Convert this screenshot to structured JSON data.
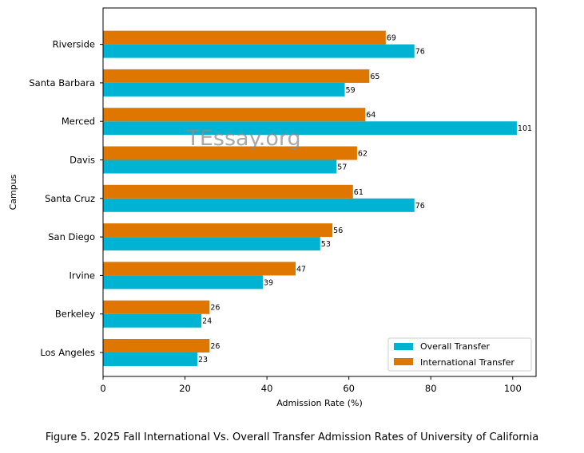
{
  "chart_data": {
    "type": "bar",
    "orientation": "horizontal",
    "categories": [
      "Los Angeles",
      "Berkeley",
      "Irvine",
      "San Diego",
      "Santa Cruz",
      "Davis",
      "Merced",
      "Santa Barbara",
      "Riverside"
    ],
    "series": [
      {
        "name": "Overall Transfer",
        "color": "#00b3d3",
        "values": [
          23,
          24,
          39,
          53,
          76,
          57,
          101,
          59,
          76
        ]
      },
      {
        "name": "International Transfer",
        "color": "#de7600",
        "values": [
          26,
          26,
          47,
          56,
          61,
          62,
          64,
          65,
          69
        ]
      }
    ],
    "value_labels": {
      "Overall Transfer": [
        "23",
        "24",
        "39",
        "53",
        "76",
        "57",
        "101",
        "59",
        "76"
      ],
      "International Transfer": [
        "26",
        "26",
        "47",
        "56",
        "61",
        "62",
        "64",
        "65",
        "69"
      ]
    },
    "xlabel": "Admission Rate (%)",
    "ylabel": "Campus",
    "xlim": [
      0,
      106
    ],
    "xticks": [
      0,
      20,
      40,
      60,
      80,
      100
    ],
    "xtick_labels": [
      "0",
      "20",
      "40",
      "60",
      "80",
      "100"
    ],
    "legend_position": "bottom-right",
    "legend": [
      "Overall Transfer",
      "International Transfer"
    ],
    "watermark": "TEssay.org"
  },
  "caption": "Figure 5. 2025 Fall International Vs. Overall Transfer Admission Rates of University of California"
}
